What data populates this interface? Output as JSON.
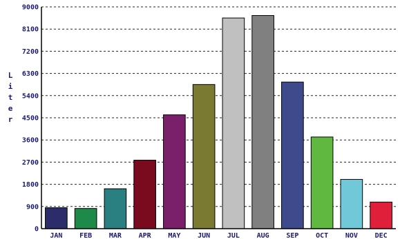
{
  "chart_data": {
    "type": "bar",
    "title": "",
    "xlabel": "",
    "ylabel": "Liter",
    "ylim": [
      0,
      9000
    ],
    "yticks": [
      0,
      900,
      1800,
      2700,
      3600,
      4500,
      5400,
      6300,
      7200,
      8100,
      9000
    ],
    "grid": true,
    "categories": [
      "JAN",
      "FEB",
      "MAR",
      "APR",
      "MAY",
      "JUN",
      "JUL",
      "AUG",
      "SEP",
      "OCT",
      "NOV",
      "DEC"
    ],
    "values": [
      850,
      820,
      1620,
      2780,
      4620,
      5850,
      8550,
      8650,
      5950,
      3720,
      2000,
      1080
    ],
    "colors": [
      "#2c2c6b",
      "#1e8a4a",
      "#2a8080",
      "#7a0a1e",
      "#7a1f6a",
      "#7a7a32",
      "#c0c0c0",
      "#808080",
      "#3f4a8c",
      "#60b840",
      "#70c8d8",
      "#e0203a"
    ]
  }
}
